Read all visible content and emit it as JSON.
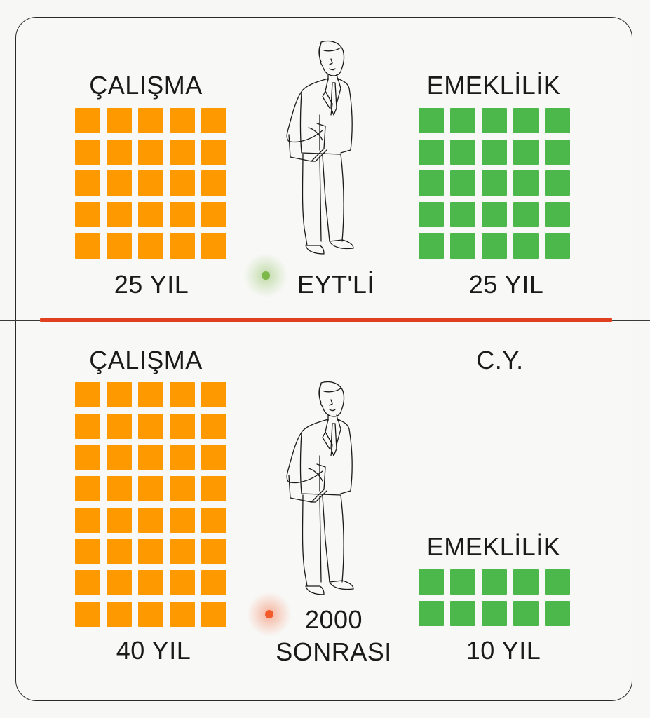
{
  "colors": {
    "work": "#ff9900",
    "retire": "#4cb84c",
    "divider": "#e0401f",
    "dot_top": "#7cb84a",
    "dot_bottom": "#f25a2a"
  },
  "top": {
    "work_title": "ÇALIŞMA",
    "retire_title": "EMEKLİLİK",
    "work_years_label": "25 YIL",
    "retire_years_label": "25 YIL",
    "group_label": "EYT'Lİ",
    "work_blocks": 25,
    "retire_blocks": 25,
    "person_icon": "businessman-icon"
  },
  "bottom": {
    "work_title": "ÇALIŞMA",
    "retire_title": "EMEKLİLİK",
    "cy_label": "C.Y.",
    "work_years_label": "40 YIL",
    "retire_years_label": "10 YIL",
    "group_label_line1": "2000",
    "group_label_line2": "SONRASI",
    "work_blocks": 40,
    "retire_blocks": 10,
    "person_icon": "businessman-icon"
  }
}
